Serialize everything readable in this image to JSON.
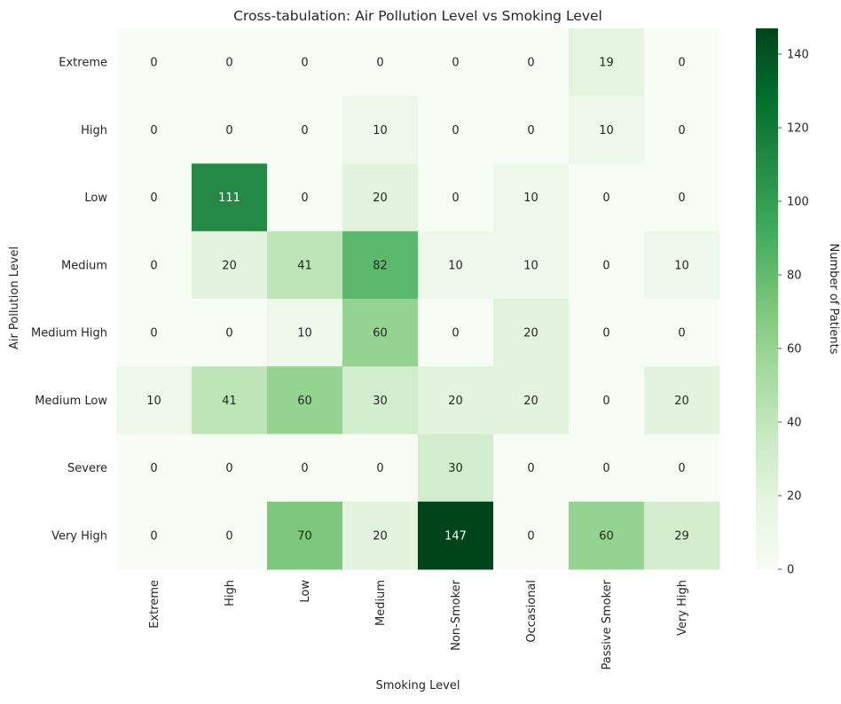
{
  "chart_data": {
    "type": "heatmap",
    "title": "Cross-tabulation: Air Pollution Level vs Smoking Level",
    "xlabel": "Smoking Level",
    "ylabel": "Air Pollution Level",
    "x_categories": [
      "Extreme",
      "High",
      "Low",
      "Medium",
      "Non-Smoker",
      "Occasional",
      "Passive Smoker",
      "Very High"
    ],
    "y_categories": [
      "Extreme",
      "High",
      "Low",
      "Medium",
      "Medium High",
      "Medium Low",
      "Severe",
      "Very High"
    ],
    "values": [
      [
        0,
        0,
        0,
        0,
        0,
        0,
        19,
        0
      ],
      [
        0,
        0,
        0,
        10,
        0,
        0,
        10,
        0
      ],
      [
        0,
        111,
        0,
        20,
        0,
        10,
        0,
        0
      ],
      [
        0,
        20,
        41,
        82,
        10,
        10,
        0,
        10
      ],
      [
        0,
        0,
        10,
        60,
        0,
        20,
        0,
        0
      ],
      [
        10,
        41,
        60,
        30,
        20,
        20,
        0,
        20
      ],
      [
        0,
        0,
        0,
        0,
        30,
        0,
        0,
        0
      ],
      [
        0,
        0,
        70,
        20,
        147,
        0,
        60,
        29
      ]
    ],
    "colorbar": {
      "label": "Number of Patients",
      "min": 0,
      "max": 147,
      "ticks": [
        0,
        20,
        40,
        60,
        80,
        100,
        120,
        140
      ]
    },
    "colormap": "Greens",
    "colors": {
      "low": "#f7fcf5",
      "high": "#00441b"
    }
  }
}
